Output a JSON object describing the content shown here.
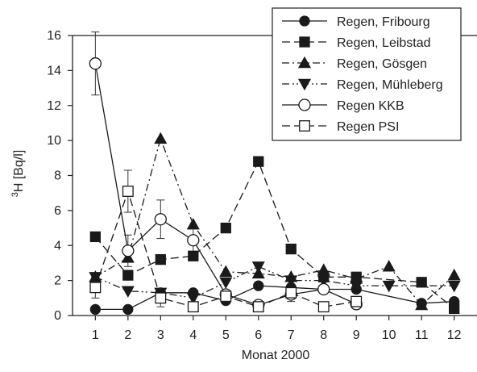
{
  "chart_data": {
    "type": "line",
    "xlabel": "Monat 2000",
    "ylabel": "3H [Bq/l]",
    "ylabel_sup": "3",
    "ylabel_rest": "H [Bq/l]",
    "xlim": [
      0.3,
      12.7
    ],
    "ylim": [
      0,
      16
    ],
    "xticks": [
      1,
      2,
      3,
      4,
      5,
      6,
      7,
      8,
      9,
      10,
      11,
      12
    ],
    "yticks": [
      0,
      2,
      4,
      6,
      8,
      10,
      12,
      14,
      16
    ],
    "grid": false,
    "legend_position": "top-right",
    "series": [
      {
        "name": "Regen, Fribourg",
        "marker": "circle-filled",
        "dash": "solid",
        "color": "#1a1a1a",
        "x": [
          1,
          2,
          3,
          4,
          5,
          6,
          7,
          8,
          9,
          11,
          12
        ],
        "y": [
          0.35,
          0.35,
          1.3,
          1.3,
          0.85,
          1.7,
          1.6,
          1.5,
          1.5,
          0.7,
          0.8
        ]
      },
      {
        "name": "Regen, Leibstad",
        "marker": "square-filled",
        "dash": "long-dash",
        "color": "#1a1a1a",
        "x": [
          1,
          2,
          3,
          4,
          5,
          6,
          7,
          8,
          9,
          11,
          12
        ],
        "y": [
          4.5,
          2.3,
          3.2,
          3.4,
          5.0,
          8.8,
          3.8,
          2.2,
          2.2,
          1.9,
          0.4
        ]
      },
      {
        "name": "Regen, Gösgen",
        "marker": "triangle-up-filled",
        "dash": "dash-dot",
        "color": "#1a1a1a",
        "x": [
          1,
          2,
          3,
          4,
          5,
          6,
          7,
          8,
          9,
          10,
          11,
          12
        ],
        "y": [
          2.2,
          3.3,
          10.1,
          5.2,
          2.5,
          2.4,
          2.2,
          2.6,
          2.1,
          2.8,
          0.6,
          2.3
        ]
      },
      {
        "name": "Regen, Mühleberg",
        "marker": "triangle-down-filled",
        "dash": "dash-dot-dot",
        "color": "#1a1a1a",
        "x": [
          1,
          2,
          3,
          4,
          5,
          6,
          7,
          8,
          9,
          10,
          12
        ],
        "y": [
          2.2,
          1.4,
          1.3,
          1.0,
          1.9,
          2.8,
          2.0,
          2.0,
          1.7,
          1.7,
          1.7
        ]
      },
      {
        "name": "Regen KKB",
        "marker": "circle-open",
        "dash": "solid",
        "color": "#1a1a1a",
        "x": [
          1,
          2,
          3,
          4,
          5,
          6,
          7,
          8,
          9
        ],
        "y": [
          14.4,
          3.7,
          5.5,
          4.3,
          1.2,
          0.6,
          1.2,
          1.5,
          0.65
        ],
        "err": [
          1.8,
          0.9,
          1.1,
          0.8,
          null,
          null,
          0.4,
          null,
          null
        ]
      },
      {
        "name": "Regen PSI",
        "marker": "square-open",
        "dash": "long-dash",
        "color": "#1a1a1a",
        "x": [
          1,
          2,
          3,
          4,
          5,
          6,
          7,
          8,
          9
        ],
        "y": [
          1.6,
          7.1,
          1.0,
          0.5,
          1.1,
          0.5,
          1.3,
          0.5,
          0.8
        ],
        "err": [
          0.6,
          1.2,
          0.5,
          null,
          null,
          null,
          null,
          null,
          null
        ]
      }
    ]
  }
}
